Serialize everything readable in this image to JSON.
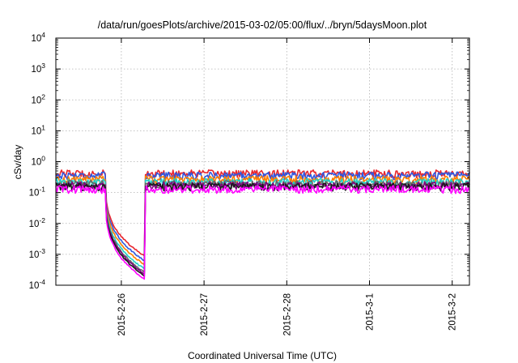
{
  "chart_data": {
    "type": "line",
    "title": "/data/run/goesPlots/archive/2015-03-02/05:00/flux/../bryn/5daysMoon.plot",
    "xlabel": "Coordinated Universal Time (UTC)",
    "ylabel": "cSv/day",
    "y_scale": "log",
    "ylim": [
      0.0001,
      10000
    ],
    "y_ticks": [
      {
        "base": "10",
        "exp": "-4",
        "value": 0.0001
      },
      {
        "base": "10",
        "exp": "-3",
        "value": 0.001
      },
      {
        "base": "10",
        "exp": "-2",
        "value": 0.01
      },
      {
        "base": "10",
        "exp": "-1",
        "value": 0.1
      },
      {
        "base": "10",
        "exp": "0",
        "value": 1
      },
      {
        "base": "10",
        "exp": "1",
        "value": 10
      },
      {
        "base": "10",
        "exp": "2",
        "value": 100
      },
      {
        "base": "10",
        "exp": "3",
        "value": 1000
      },
      {
        "base": "10",
        "exp": "4",
        "value": 10000
      }
    ],
    "x_range": [
      "2015-02-25T05:00",
      "2015-03-02T05:00"
    ],
    "x_ticks": [
      "2015-2-26",
      "2015-2-27",
      "2015-2-28",
      "2015-3-1",
      "2015-3-2"
    ],
    "grid": true,
    "drop_window": {
      "start": "2015-02-25T19:20",
      "end": "2015-02-26T07:00"
    },
    "series": [
      {
        "color": "#e8262d",
        "baseline": 0.42,
        "min_value": 0.00085
      },
      {
        "color": "#2f59e0",
        "baseline": 0.36,
        "min_value": 0.0006
      },
      {
        "color": "#ff7f00",
        "baseline": 0.27,
        "min_value": 0.00045
      },
      {
        "color": "#1fd0c8",
        "baseline": 0.22,
        "min_value": 0.00032
      },
      {
        "color": "#666666",
        "baseline": 0.19,
        "min_value": 0.00025
      },
      {
        "color": "#7f007f",
        "baseline": 0.17,
        "min_value": 0.00022
      },
      {
        "color": "#1a1a1a",
        "baseline": 0.155,
        "min_value": 0.00019
      },
      {
        "color": "#ff00ff",
        "baseline": 0.13,
        "min_value": 0.00015
      }
    ]
  }
}
